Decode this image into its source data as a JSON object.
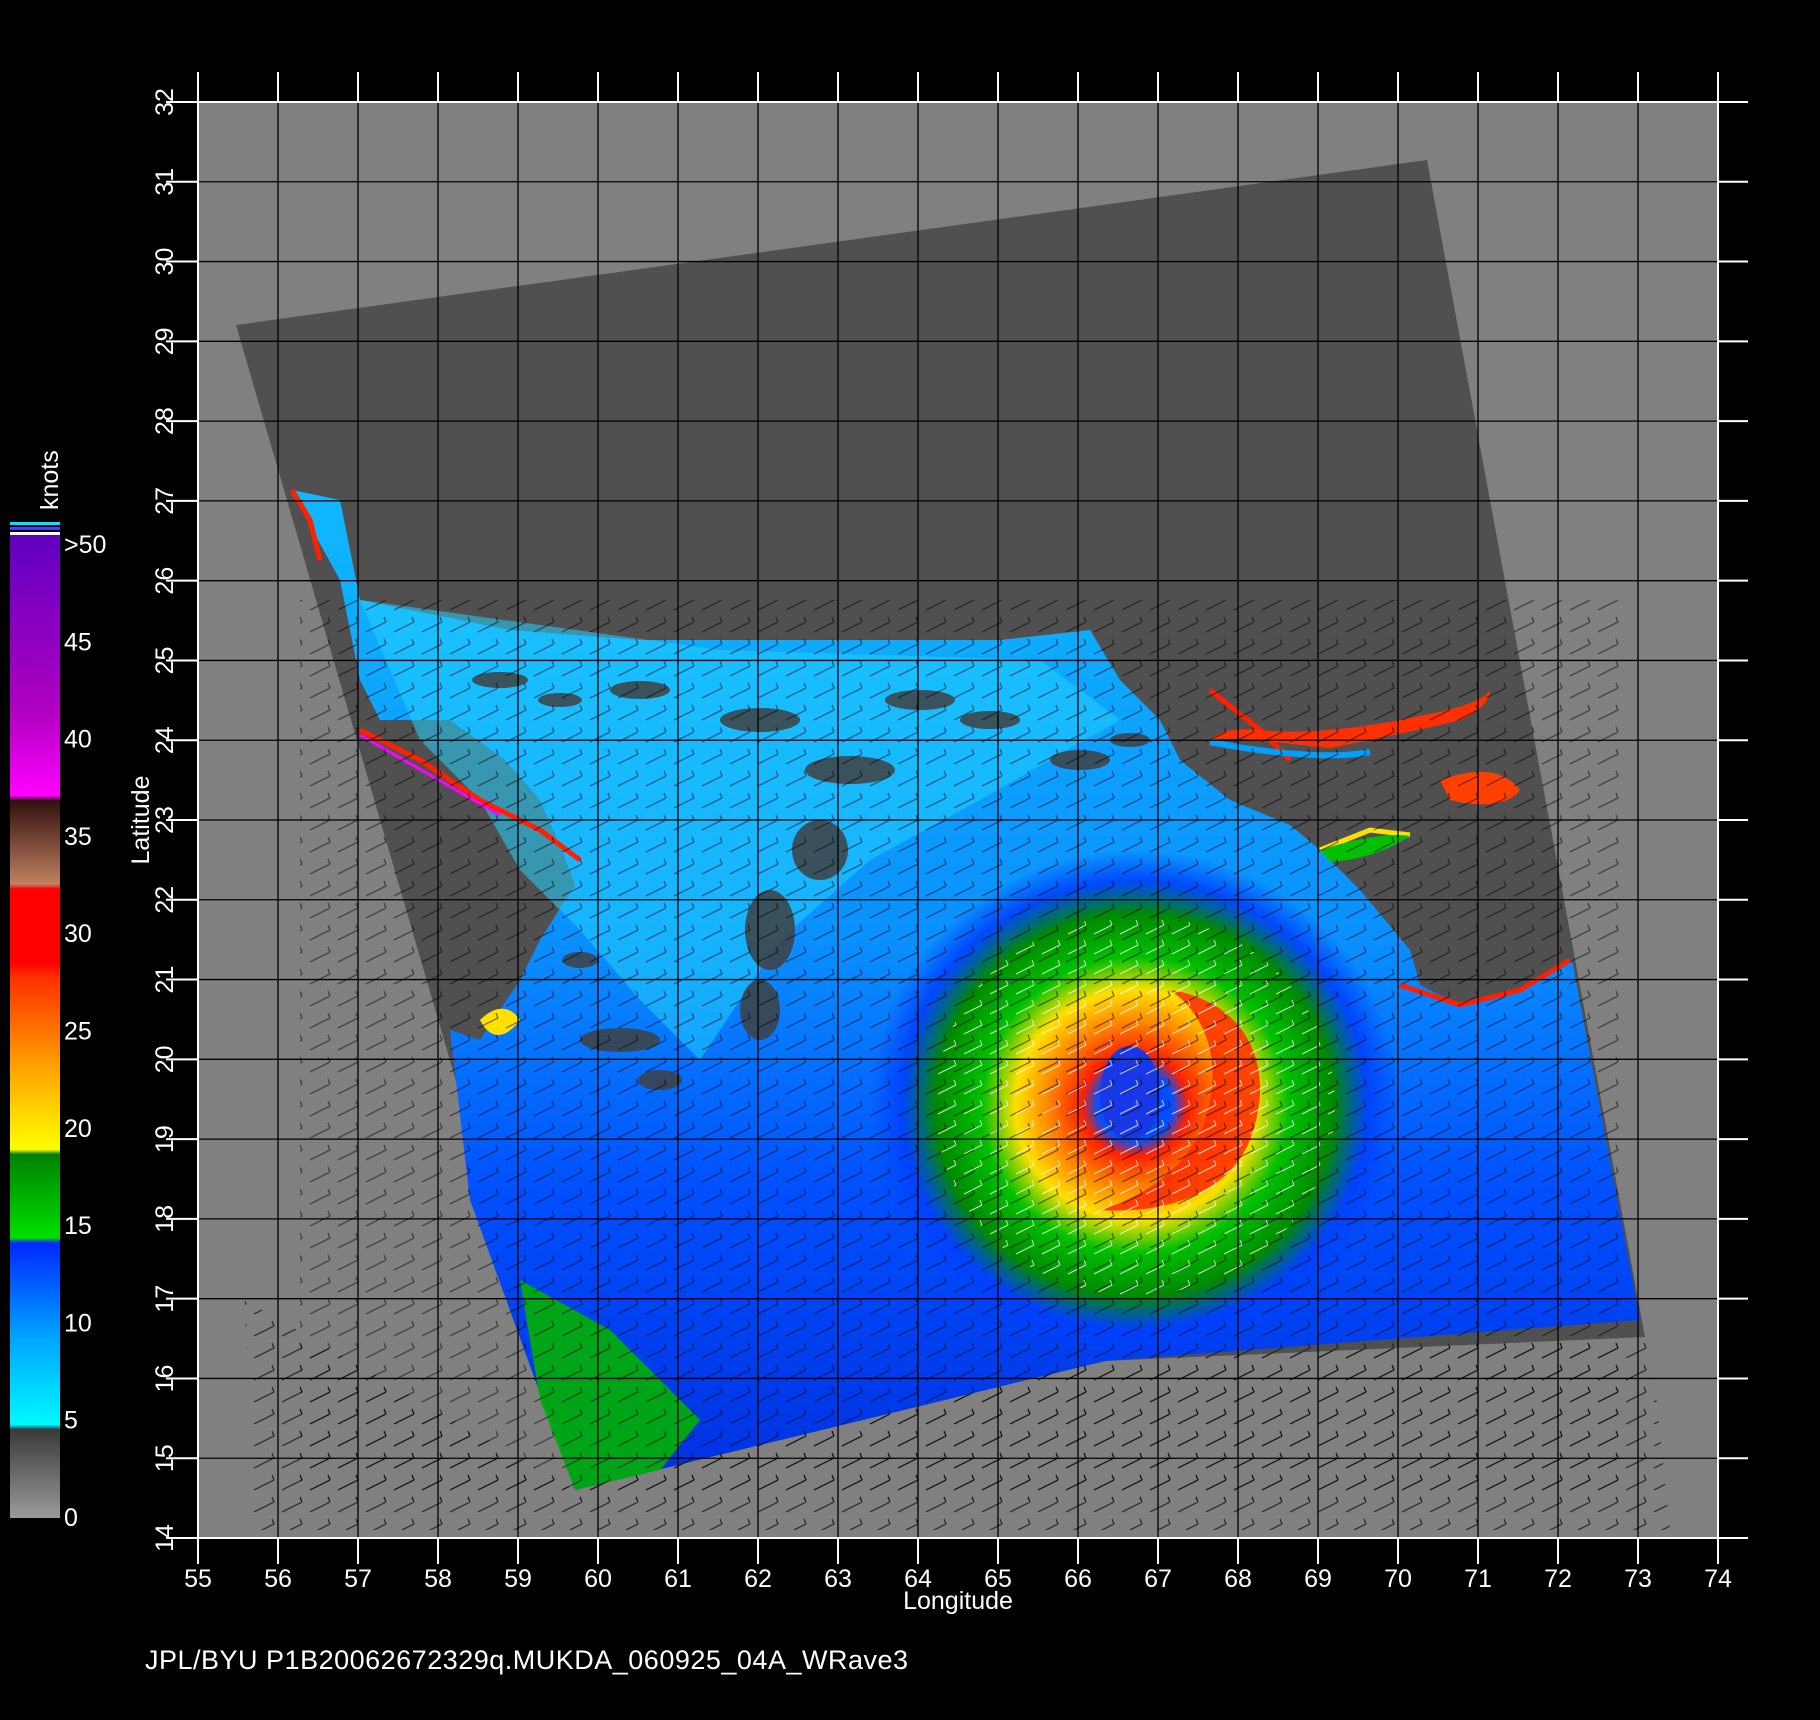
{
  "map": {
    "x_axis_label": "Longitude",
    "y_axis_label": "Latitude",
    "lon_ticks": [
      "55",
      "56",
      "57",
      "58",
      "59",
      "60",
      "61",
      "62",
      "63",
      "64",
      "65",
      "66",
      "67",
      "68",
      "69",
      "70",
      "71",
      "72",
      "73",
      "74"
    ],
    "lat_ticks": [
      "14",
      "15",
      "16",
      "17",
      "18",
      "19",
      "20",
      "21",
      "22",
      "23",
      "24",
      "25",
      "26",
      "27",
      "28",
      "29",
      "30",
      "31",
      "32"
    ],
    "lon_range": [
      55,
      74
    ],
    "lat_range": [
      14,
      32
    ],
    "storm_center": {
      "lon": 66.5,
      "lat": 19.4
    },
    "colors": {
      "background": "#000000",
      "no_data": "#808080",
      "land_swath": "#505050",
      "grid": "#000000"
    }
  },
  "legend": {
    "unit": "knots",
    "labels": [
      "0",
      "5",
      "10",
      "15",
      "20",
      "25",
      "30",
      "35",
      "40",
      "45",
      ">50"
    ],
    "colors": [
      "#808080",
      "#00e5ff",
      "#0040ff",
      "#00a000",
      "#ffe000",
      "#ff8000",
      "#ff1000",
      "#a05030",
      "#ff00ff",
      "#8000c0"
    ]
  },
  "footer": {
    "text": "JPL/BYU  P1B20062672329q.MUKDA_060925_04A_WRave3"
  }
}
